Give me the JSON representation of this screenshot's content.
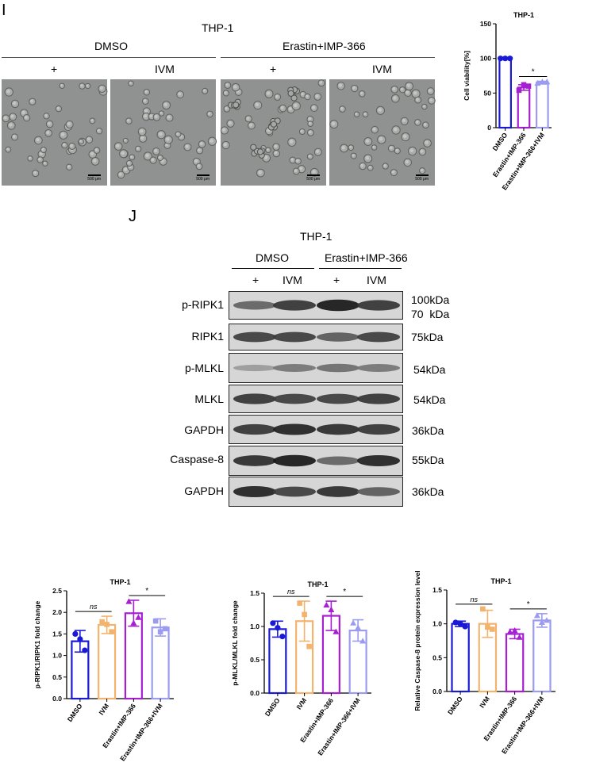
{
  "panel_i": {
    "letter": "I",
    "cell_line": "THP-1",
    "group_dmso": "DMSO",
    "group_erastin": "Erastin+IMP-366",
    "lanes": [
      "+",
      "IVM",
      "+",
      "IVM"
    ],
    "scale_bar": "500 μm"
  },
  "panel_j": {
    "letter": "J",
    "cell_line": "THP-1",
    "group_dmso": "DMSO",
    "group_erastin": "Erastin+IMP-366",
    "lanes": [
      "+",
      "IVM",
      "+",
      "IVM"
    ],
    "blots": [
      {
        "protein": "p-RIPK1",
        "size": "100kDa\n70  kDa",
        "bands": [
          0.55,
          0.8,
          0.95,
          0.8
        ]
      },
      {
        "protein": "RIPK1",
        "size": "75kDa",
        "bands": [
          0.75,
          0.75,
          0.6,
          0.75
        ]
      },
      {
        "protein": "p-MLKL",
        "size": "54kDa",
        "bands": [
          0.25,
          0.45,
          0.5,
          0.45
        ]
      },
      {
        "protein": "MLKL",
        "size": "54kDa",
        "bands": [
          0.8,
          0.75,
          0.75,
          0.8
        ]
      },
      {
        "protein": "GAPDH",
        "size": "36kDa",
        "bands": [
          0.8,
          0.9,
          0.85,
          0.8
        ]
      },
      {
        "protein": "Caspase-8",
        "size": "55kDa",
        "bands": [
          0.85,
          0.95,
          0.55,
          0.9
        ]
      },
      {
        "protein": "GAPDH",
        "size": "36kDa",
        "bands": [
          0.9,
          0.75,
          0.85,
          0.6
        ]
      }
    ]
  },
  "colors": {
    "DMSO": "#1a1ad6",
    "IVM": "#f4b36c",
    "Erastin+IMP-366": "#a61fd1",
    "Erastin+IMP-366+IVM": "#9b9bf0"
  },
  "chart_data": [
    {
      "type": "bar",
      "title": "THP-1",
      "ylabel": "Cell viability[%]",
      "categories": [
        "DMSO",
        "Erastin+IMP-366",
        "Erastin+IMP-366+IVM"
      ],
      "values": [
        100,
        58,
        65
      ],
      "errors": [
        0.5,
        4,
        2
      ],
      "points": [
        [
          100,
          100,
          100
        ],
        [
          54,
          60,
          62
        ],
        [
          64,
          66,
          66
        ]
      ],
      "markers": [
        "circle",
        "square",
        "triangle"
      ],
      "ylim": [
        0,
        150
      ],
      "yticks": [
        0,
        50,
        100,
        150
      ],
      "ytick_labels": [
        "0",
        "50",
        "100",
        "150"
      ],
      "annotations": [
        {
          "text": "*",
          "from": 1,
          "to": 2
        }
      ]
    },
    {
      "type": "bar",
      "title": "THP-1",
      "ylabel": "p-RIPK1/RIPK1 fold change",
      "categories": [
        "DMSO",
        "IVM",
        "Erastin+IMP-366",
        "Erastin+IMP-366+IVM"
      ],
      "values": [
        1.33,
        1.71,
        1.98,
        1.65
      ],
      "errors": [
        0.25,
        0.2,
        0.3,
        0.2
      ],
      "points": [
        [
          1.5,
          1.12,
          1.38
        ],
        [
          1.78,
          1.55,
          1.72
        ],
        [
          2.25,
          1.88,
          1.75
        ],
        [
          1.8,
          1.62,
          1.55
        ]
      ],
      "markers": [
        "circle",
        "square",
        "triangle",
        "square"
      ],
      "ylim": [
        0,
        2.5
      ],
      "yticks": [
        0,
        0.5,
        1,
        1.5,
        2,
        2.5
      ],
      "ytick_labels": [
        "0.0",
        "0.5",
        "1.0",
        "1.5",
        "2.0",
        "2.5"
      ],
      "annotations": [
        {
          "text": "ns",
          "from": 0,
          "to": 1
        },
        {
          "text": "*",
          "from": 2,
          "to": 3
        }
      ]
    },
    {
      "type": "bar",
      "title": "THP-1",
      "ylabel": "p-MLKL/MLKL fold change",
      "categories": [
        "DMSO",
        "IVM",
        "Erastin+IMP-366",
        "Erastin+IMP-366+IVM"
      ],
      "values": [
        0.96,
        1.08,
        1.16,
        0.94
      ],
      "errors": [
        0.12,
        0.3,
        0.22,
        0.16
      ],
      "points": [
        [
          1.05,
          0.85,
          0.98
        ],
        [
          1.35,
          0.7,
          1.18
        ],
        [
          1.32,
          0.92,
          1.25
        ],
        [
          1.05,
          0.78,
          0.98
        ]
      ],
      "markers": [
        "circle",
        "square",
        "triangle",
        "triangle"
      ],
      "ylim": [
        0,
        1.5
      ],
      "yticks": [
        0,
        0.5,
        1,
        1.5
      ],
      "ytick_labels": [
        "0.0",
        "0.5",
        "1.0",
        "1.5"
      ],
      "annotations": [
        {
          "text": "ns",
          "from": 0,
          "to": 1
        },
        {
          "text": "*",
          "from": 2,
          "to": 3
        }
      ]
    },
    {
      "type": "bar",
      "title": "THP-1",
      "ylabel": "Relative Caspase-8 protein expression level",
      "categories": [
        "DMSO",
        "IVM",
        "Erastin+IMP-366",
        "Erastin+IMP-366+IVM"
      ],
      "values": [
        1.0,
        1.0,
        0.85,
        1.05
      ],
      "errors": [
        0.04,
        0.2,
        0.07,
        0.1
      ],
      "points": [
        [
          1.02,
          0.96,
          1.0
        ],
        [
          1.22,
          0.92,
          0.95
        ],
        [
          0.88,
          0.8,
          0.9
        ],
        [
          1.12,
          1.05,
          1.02
        ]
      ],
      "markers": [
        "circle",
        "square",
        "triangle",
        "triangle"
      ],
      "ylim": [
        0,
        1.5
      ],
      "yticks": [
        0,
        0.5,
        1,
        1.5
      ],
      "ytick_labels": [
        "0.0",
        "0.5",
        "1.0",
        "1.5"
      ],
      "annotations": [
        {
          "text": "ns",
          "from": 0,
          "to": 1
        },
        {
          "text": "*",
          "from": 2,
          "to": 3
        }
      ]
    }
  ]
}
